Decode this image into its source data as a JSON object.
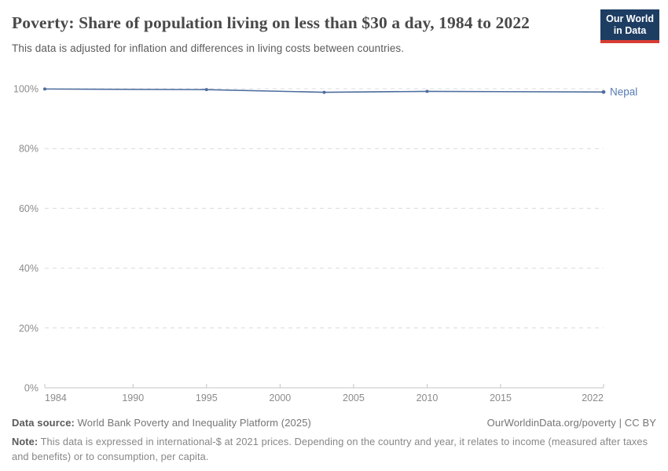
{
  "header": {
    "title": "Poverty: Share of population living on less than $30 a day, 1984 to 2022",
    "subtitle": "This data is adjusted for inflation and differences in living costs between countries.",
    "logo": {
      "line1": "Our World",
      "line2": "in Data",
      "bg_color": "#1d3d63",
      "stripe_color": "#d73c32"
    }
  },
  "chart_data": {
    "type": "line",
    "title": "Poverty: Share of population living on less than $30 a day, 1984 to 2022",
    "xlabel": "",
    "ylabel": "",
    "xlim": [
      1984,
      2022
    ],
    "ylim": [
      0,
      100
    ],
    "x_ticks": [
      1984,
      1990,
      1995,
      2000,
      2005,
      2010,
      2015,
      2022
    ],
    "x_tick_labels": [
      "1984",
      "1990",
      "1995",
      "2000",
      "2005",
      "2010",
      "2015",
      "2022"
    ],
    "y_ticks": [
      0,
      20,
      40,
      60,
      80,
      100
    ],
    "y_tick_labels": [
      "0%",
      "20%",
      "40%",
      "60%",
      "80%",
      "100%"
    ],
    "grid": "horizontal-dashed",
    "legend_position": "end-of-line-label",
    "series": [
      {
        "name": "Nepal",
        "color": "#4d6d9e",
        "label_color": "#577cb2",
        "x": [
          1984,
          1995,
          2003,
          2010,
          2022
        ],
        "values": [
          99.9,
          99.7,
          98.8,
          99.1,
          98.9
        ]
      }
    ],
    "colors": {
      "gridline": "#dcdcdc",
      "axis": "#c4c4c4",
      "tick_label": "#8b8b8b"
    }
  },
  "footer": {
    "datasource_label": "Data source:",
    "datasource_value": " World Bank Poverty and Inequality Platform (2025)",
    "attribution": "OurWorldinData.org/poverty | CC BY",
    "note_label": "Note:",
    "note_value": " This data is expressed in international-$ at 2021 prices. Depending on the country and year, it relates to income (measured after taxes and benefits) or to consumption, per capita."
  }
}
